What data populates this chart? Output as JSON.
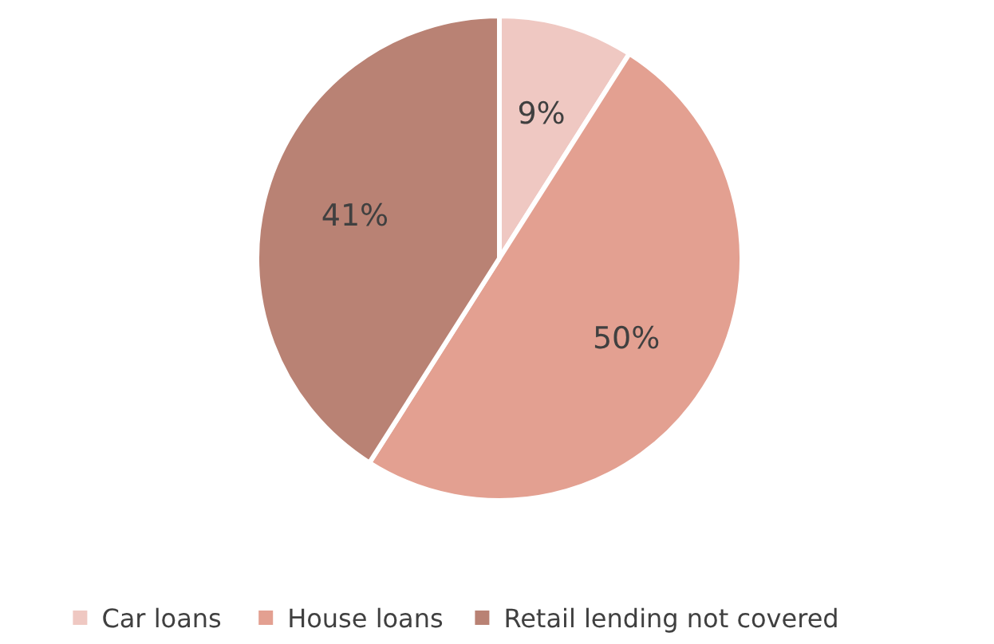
{
  "chart_data": {
    "type": "pie",
    "categories": [
      "Car loans",
      "House loans",
      "Retail lending not covered"
    ],
    "values": [
      9,
      50,
      41
    ],
    "colors": [
      "#efc8c2",
      "#e3a091",
      "#b98274"
    ],
    "value_labels": [
      "9%",
      "50%",
      "41%"
    ],
    "legend": "bottom"
  }
}
